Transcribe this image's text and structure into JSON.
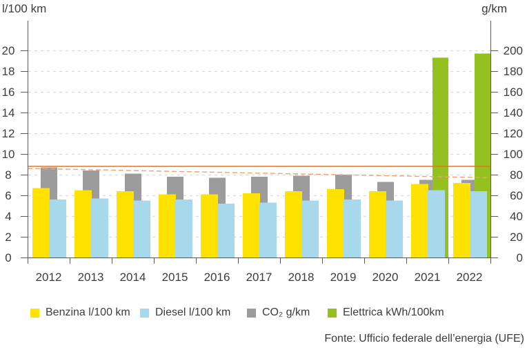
{
  "axes": {
    "left_title": "l/100 km",
    "right_title": "g/km"
  },
  "chart_data": {
    "type": "bar",
    "title": "",
    "categories": [
      "2012",
      "2013",
      "2014",
      "2015",
      "2016",
      "2017",
      "2018",
      "2019",
      "2020",
      "2021",
      "2022"
    ],
    "series": [
      {
        "id": "benzina",
        "name": "Benzina l/100 km",
        "axis": "left",
        "unit": "l/100 km",
        "color": "#ffe200",
        "values": [
          6.7,
          6.5,
          6.4,
          6.1,
          6.1,
          6.2,
          6.4,
          6.6,
          6.4,
          7.1,
          7.2
        ]
      },
      {
        "id": "diesel",
        "name": "Diesel l/100 km",
        "axis": "left",
        "unit": "l/100 km",
        "color": "#a7d8ec",
        "values": [
          5.6,
          5.7,
          5.5,
          5.6,
          5.2,
          5.3,
          5.5,
          5.6,
          5.5,
          6.5,
          6.4
        ]
      },
      {
        "id": "co2",
        "name": "CO₂ g/km",
        "axis": "right",
        "unit": "g/km",
        "color": "#9c9c9c",
        "values": [
          87,
          84,
          81,
          78,
          77,
          78,
          79,
          80,
          73,
          75,
          75
        ]
      },
      {
        "id": "elettrica",
        "name": "Elettrica kWh/100km",
        "axis": "left",
        "unit": "kWh/100km",
        "color": "#94c11f",
        "values": [
          null,
          null,
          null,
          null,
          null,
          null,
          null,
          null,
          null,
          19.3,
          19.7
        ]
      }
    ],
    "draw_order": [
      "co2",
      "elettrica",
      "benzina",
      "diesel"
    ],
    "left_ticks": [
      20,
      18,
      16,
      14,
      12,
      10,
      8,
      6,
      4,
      2,
      0
    ],
    "right_ticks": [
      200,
      180,
      160,
      140,
      120,
      100,
      80,
      60,
      40,
      20,
      0
    ],
    "ylim_left": [
      0,
      20
    ],
    "ylim_right": [
      0,
      200
    ],
    "grid": "horizontal dashed",
    "legend_position": "bottom",
    "reference_lines": {
      "solid": {
        "axis": "right",
        "value": 88,
        "color": "#ed7218",
        "style": "solid"
      },
      "dashed": {
        "axis": "right",
        "start": 86,
        "end": 77,
        "color": "#f3a06e",
        "style": "dashed"
      }
    }
  },
  "legend": {
    "items": [
      {
        "id": "benzina",
        "label": "Benzina l/100 km",
        "color": "#ffe200"
      },
      {
        "id": "diesel",
        "label": "Diesel l/100 km",
        "color": "#a7d8ec"
      },
      {
        "id": "co2",
        "label": "CO₂ g/km",
        "color": "#9c9c9c"
      },
      {
        "id": "elettrica",
        "label": "Elettrica kWh/100km",
        "color": "#94c11f"
      }
    ]
  },
  "source": {
    "text": "Fonte: Ufficio federale dell’energia (UFE)"
  }
}
